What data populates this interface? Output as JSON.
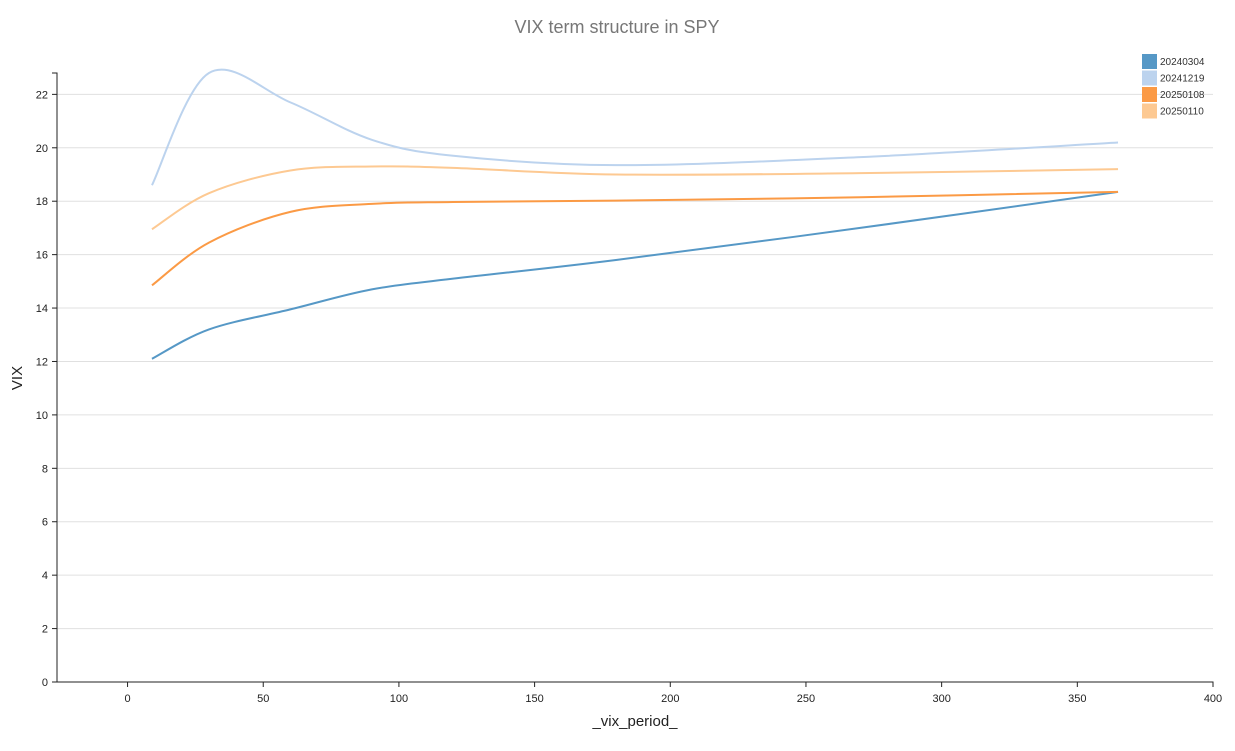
{
  "chart_data": {
    "type": "line",
    "title": "VIX term structure in SPY",
    "xlabel": "_vix_period_",
    "ylabel": "VIX",
    "xlim": [
      -26,
      400
    ],
    "ylim": [
      0,
      22.8
    ],
    "xticks": [
      0,
      50,
      100,
      150,
      200,
      250,
      300,
      350,
      400
    ],
    "yticks": [
      0,
      2,
      4,
      6,
      8,
      10,
      12,
      14,
      16,
      18,
      20,
      22
    ],
    "grid": "horizontal",
    "legend_position": "top-right",
    "x": [
      9,
      30,
      60,
      90,
      120,
      180,
      270,
      365
    ],
    "series": [
      {
        "name": "20240304",
        "color": "#5698c6",
        "values": [
          12.1,
          13.2,
          13.95,
          14.7,
          15.1,
          15.8,
          17.0,
          18.35
        ]
      },
      {
        "name": "20241219",
        "color": "#bcd3ee",
        "values": [
          18.6,
          22.8,
          21.7,
          20.3,
          19.7,
          19.35,
          19.65,
          20.2
        ]
      },
      {
        "name": "20250108",
        "color": "#fb9a45",
        "values": [
          14.85,
          16.45,
          17.6,
          17.9,
          17.97,
          18.02,
          18.15,
          18.35
        ]
      },
      {
        "name": "20250110",
        "color": "#fdc992",
        "values": [
          16.95,
          18.3,
          19.15,
          19.3,
          19.25,
          19.0,
          19.05,
          19.2
        ]
      }
    ]
  }
}
